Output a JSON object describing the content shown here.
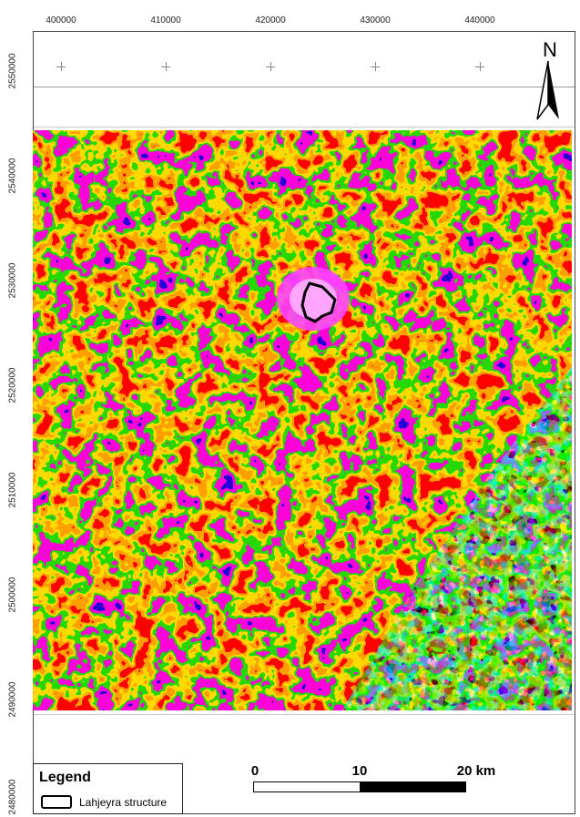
{
  "map": {
    "x_ticks": [
      "400000",
      "410000",
      "420000",
      "430000",
      "440000"
    ],
    "y_ticks": [
      "2550000",
      "2540000",
      "2530000",
      "2520000",
      "2510000",
      "2500000",
      "2490000",
      "2480000"
    ],
    "north_label": "N",
    "raster_palette": [
      "#ff0000",
      "#ff8000",
      "#ffff00",
      "#00ff00",
      "#00e0c0",
      "#ff00ff",
      "#0000ff"
    ]
  },
  "legend": {
    "title": "Legend",
    "item_label": "Lahjeyra structure",
    "item_color": "#000000"
  },
  "scale": {
    "labels": [
      "0",
      "10",
      "20 km"
    ]
  }
}
